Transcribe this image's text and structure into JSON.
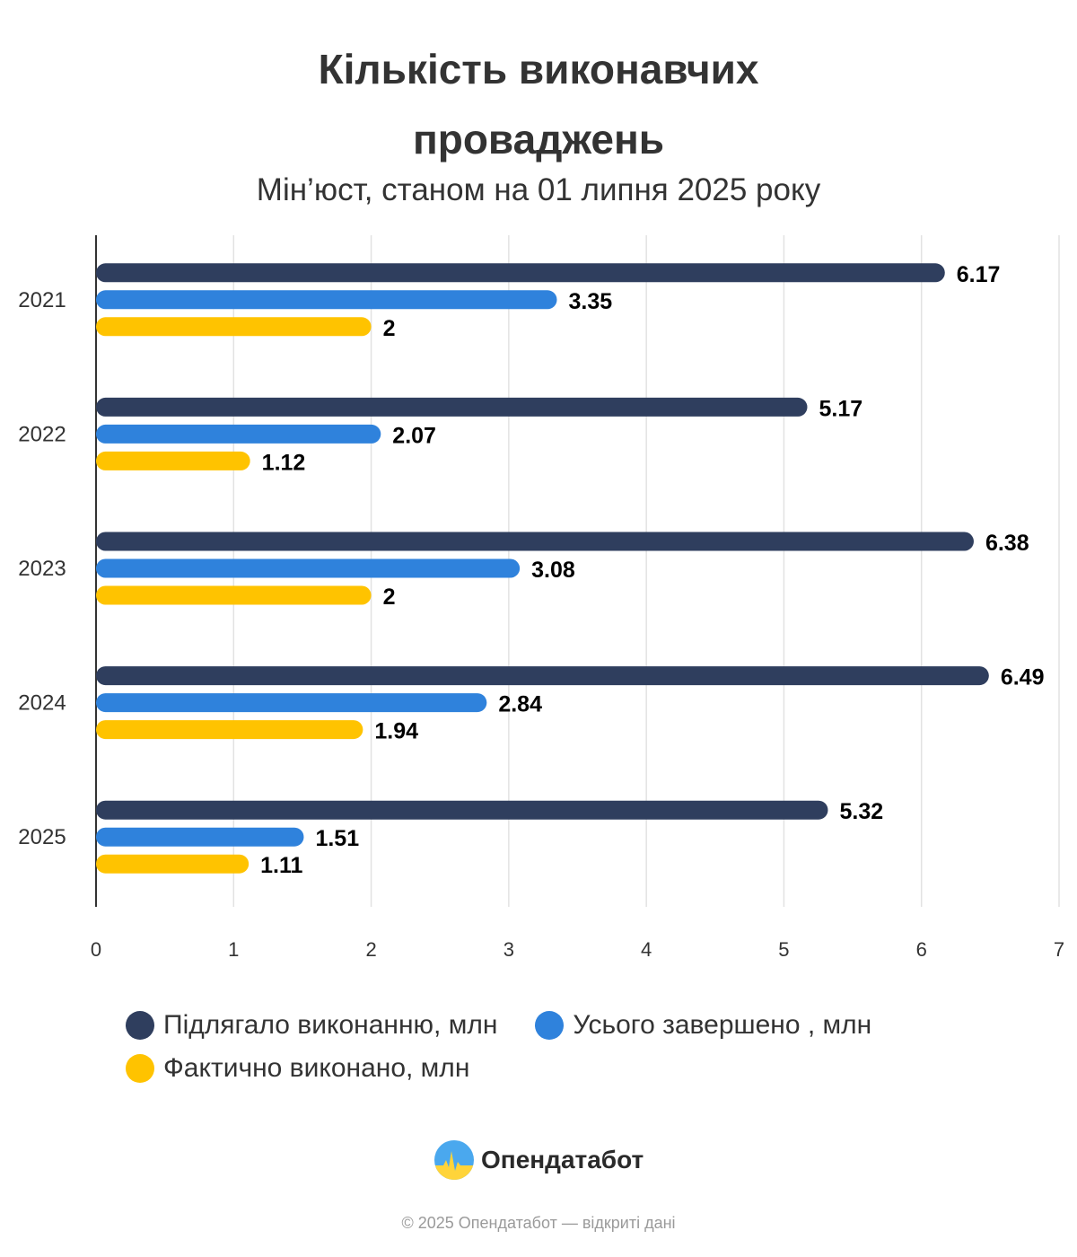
{
  "chart_data": {
    "type": "bar",
    "orientation": "horizontal",
    "title": "Кількість виконавчих проваджень",
    "subtitle": "Мін’юст, станом на 01 липня 2025 року",
    "categories": [
      "2021",
      "2022",
      "2023",
      "2024",
      "2025"
    ],
    "series": [
      {
        "name": "Підлягало виконанню, млн",
        "color": "#2f3e5e",
        "values": [
          6.17,
          5.17,
          6.38,
          6.49,
          5.32
        ],
        "labels": [
          "6.17",
          "5.17",
          "6.38",
          "6.49",
          "5.32"
        ]
      },
      {
        "name": "Усього завершено , млн",
        "color": "#2f82dc",
        "values": [
          3.35,
          2.07,
          3.08,
          2.84,
          1.51
        ],
        "labels": [
          "3.35",
          "2.07",
          "3.08",
          "2.84",
          "1.51"
        ]
      },
      {
        "name": "Фактично виконано, млн",
        "color": "#ffc300",
        "values": [
          2,
          1.12,
          2,
          1.94,
          1.11
        ],
        "labels": [
          "2",
          "1.12",
          "2",
          "1.94",
          "1.11"
        ]
      }
    ],
    "xlim": [
      0,
      7
    ],
    "xticks": [
      "0",
      "1",
      "2",
      "3",
      "4",
      "5",
      "6",
      "7"
    ],
    "grid": true,
    "legend": "bottom"
  },
  "brand": {
    "name": "Опендатабот"
  },
  "footer": {
    "text": "© 2025 Опендатабот — відкриті дані"
  }
}
